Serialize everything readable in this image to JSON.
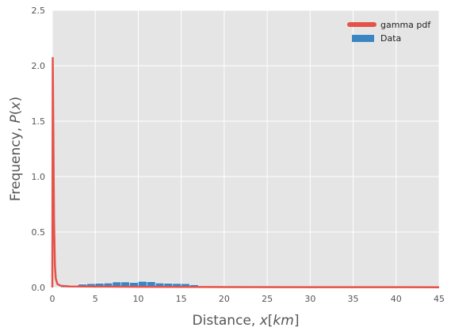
{
  "chart_data": {
    "type": "bar",
    "title": "",
    "xlabel": "Distance, x[km]",
    "ylabel": "Frequency, P(x)",
    "xlim": [
      0,
      45
    ],
    "ylim": [
      0,
      2.5
    ],
    "xticks": [
      0,
      5,
      10,
      15,
      20,
      25,
      30,
      35,
      40,
      45
    ],
    "yticks": [
      0.0,
      0.5,
      1.0,
      1.5,
      2.0,
      2.5
    ],
    "grid": true,
    "legend_position": "top-right",
    "legend": [
      {
        "label": "gamma pdf",
        "kind": "line",
        "color": "#e5524a"
      },
      {
        "label": "Data",
        "kind": "bar",
        "color": "#3a86c4"
      }
    ],
    "series": [
      {
        "name": "Data",
        "type": "bar",
        "color": "#3a86c4",
        "bin_width": 1,
        "bin_starts": [
          0,
          1,
          2,
          3,
          4,
          5,
          6,
          7,
          8,
          9,
          10,
          11,
          12,
          13,
          14,
          15,
          16,
          17,
          18,
          19,
          20,
          21
        ],
        "values": [
          0.005,
          0.01,
          0.02,
          0.03,
          0.035,
          0.038,
          0.04,
          0.05,
          0.05,
          0.045,
          0.055,
          0.052,
          0.04,
          0.038,
          0.036,
          0.035,
          0.025,
          0.012,
          0.01,
          0.008,
          0.005,
          0.003
        ]
      },
      {
        "name": "gamma pdf",
        "type": "line",
        "color": "#e5524a",
        "x": [
          0,
          0.05,
          0.1,
          0.2,
          0.3,
          0.4,
          0.6,
          1,
          2,
          5,
          10,
          20,
          30,
          45
        ],
        "y": [
          0,
          2.07,
          1.6,
          0.6,
          0.2,
          0.08,
          0.03,
          0.015,
          0.01,
          0.008,
          0.006,
          0.004,
          0.003,
          0.002
        ]
      }
    ]
  }
}
